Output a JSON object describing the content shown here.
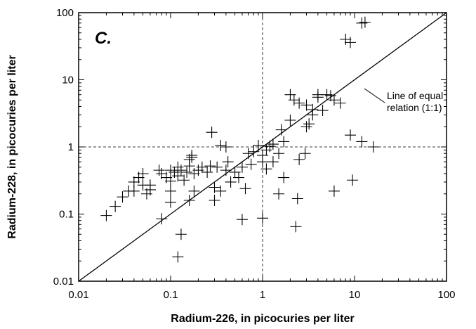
{
  "chart_data": {
    "type": "scatter",
    "panel_label": "C.",
    "xlabel": "Radium-226, in picocuries per liter",
    "ylabel": "Radium-228, in picocuries per liter",
    "x_scale": "log",
    "y_scale": "log",
    "xlim": [
      0.01,
      100
    ],
    "ylim": [
      0.01,
      100
    ],
    "x_ticks": [
      "0.01",
      "0.1",
      "1",
      "10",
      "100"
    ],
    "y_ticks": [
      "0.01",
      "0.1",
      "1",
      "10",
      "100"
    ],
    "reference_lines": {
      "x": 1,
      "y": 1,
      "style": "dashed"
    },
    "one_to_one_line": {
      "from": [
        0.01,
        0.01
      ],
      "to": [
        100,
        100
      ]
    },
    "annotation": {
      "lines": [
        "Line of equal",
        "relation (1:1)"
      ]
    },
    "marker": "plus",
    "points": [
      [
        0.02,
        0.095
      ],
      [
        0.025,
        0.13
      ],
      [
        0.03,
        0.18
      ],
      [
        0.035,
        0.22
      ],
      [
        0.04,
        0.3
      ],
      [
        0.04,
        0.22
      ],
      [
        0.045,
        0.35
      ],
      [
        0.05,
        0.4
      ],
      [
        0.05,
        0.27
      ],
      [
        0.055,
        0.2
      ],
      [
        0.06,
        0.27
      ],
      [
        0.06,
        0.23
      ],
      [
        0.075,
        0.45
      ],
      [
        0.08,
        0.4
      ],
      [
        0.09,
        0.35
      ],
      [
        0.1,
        0.45
      ],
      [
        0.1,
        0.31
      ],
      [
        0.1,
        0.22
      ],
      [
        0.11,
        0.42
      ],
      [
        0.12,
        0.5
      ],
      [
        0.12,
        0.37
      ],
      [
        0.13,
        0.45
      ],
      [
        0.14,
        0.32
      ],
      [
        0.15,
        0.42
      ],
      [
        0.16,
        0.65
      ],
      [
        0.16,
        0.52
      ],
      [
        0.17,
        0.75
      ],
      [
        0.17,
        0.7
      ],
      [
        0.18,
        0.4
      ],
      [
        0.18,
        0.22
      ],
      [
        0.2,
        0.45
      ],
      [
        0.22,
        0.5
      ],
      [
        0.25,
        0.42
      ],
      [
        0.27,
        0.52
      ],
      [
        0.28,
        1.65
      ],
      [
        0.3,
        0.25
      ],
      [
        0.3,
        0.16
      ],
      [
        0.32,
        0.5
      ],
      [
        0.35,
        1.05
      ],
      [
        0.35,
        0.22
      ],
      [
        0.4,
        0.45
      ],
      [
        0.4,
        1.0
      ],
      [
        0.42,
        0.6
      ],
      [
        0.45,
        0.3
      ],
      [
        0.5,
        0.42
      ],
      [
        0.55,
        0.35
      ],
      [
        0.6,
        0.5
      ],
      [
        0.65,
        0.24
      ],
      [
        0.7,
        0.8
      ],
      [
        0.75,
        0.55
      ],
      [
        0.8,
        0.85
      ],
      [
        0.9,
        1.05
      ],
      [
        1.0,
        0.75
      ],
      [
        1.1,
        0.47
      ],
      [
        1.2,
        1.02
      ],
      [
        1.3,
        0.6
      ],
      [
        1.5,
        0.8
      ],
      [
        1.6,
        1.8
      ],
      [
        1.7,
        1.2
      ],
      [
        1.7,
        0.35
      ],
      [
        2.0,
        2.5
      ],
      [
        2.0,
        6.0
      ],
      [
        2.2,
        5.0
      ],
      [
        2.5,
        4.5
      ],
      [
        3.0,
        4.2
      ],
      [
        3.2,
        2.2
      ],
      [
        3.5,
        3.0
      ],
      [
        4.0,
        5.5
      ],
      [
        4.5,
        3.5
      ],
      [
        5.0,
        6.0
      ],
      [
        5.5,
        5.8
      ],
      [
        6.0,
        5.0
      ],
      [
        7.0,
        4.5
      ],
      [
        8.0,
        40
      ],
      [
        9.0,
        36
      ],
      [
        12,
        70
      ],
      [
        13,
        72
      ],
      [
        9.0,
        1.5
      ],
      [
        12,
        1.2
      ],
      [
        16,
        1.0
      ],
      [
        2.9,
        0.8
      ],
      [
        2.5,
        0.65
      ],
      [
        2.3,
        0.065
      ],
      [
        2.4,
        0.17
      ],
      [
        1.5,
        0.2
      ],
      [
        6.0,
        0.22
      ],
      [
        9.5,
        0.32
      ],
      [
        0.6,
        0.083
      ],
      [
        1.0,
        0.087
      ],
      [
        0.08,
        0.085
      ],
      [
        0.1,
        0.15
      ],
      [
        0.13,
        0.05
      ],
      [
        0.12,
        0.023
      ],
      [
        0.16,
        0.16
      ],
      [
        1.0,
        0.6
      ],
      [
        1.1,
        0.9
      ],
      [
        1.3,
        1.1
      ],
      [
        3.0,
        2.0
      ],
      [
        3.5,
        3.6
      ],
      [
        4.0,
        6.0
      ]
    ]
  }
}
